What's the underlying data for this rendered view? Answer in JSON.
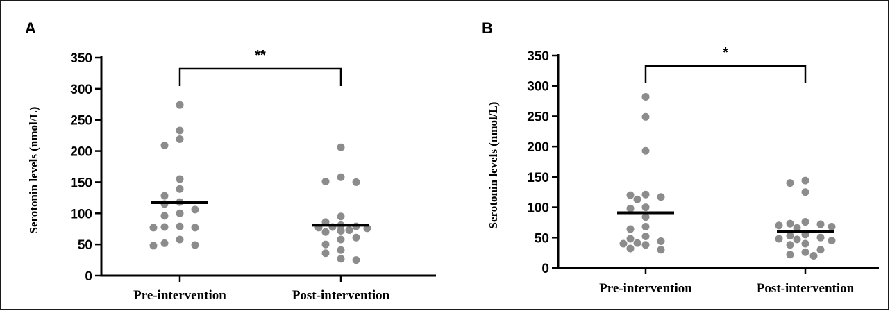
{
  "chart_data": [
    {
      "panel": "A",
      "type": "scatter",
      "ylabel": "Serotonin levels (nmol/L)",
      "ylim": [
        0,
        350
      ],
      "yticks": [
        "0",
        "50",
        "100",
        "150",
        "200",
        "250",
        "300",
        "350"
      ],
      "categories": [
        "Pre-intervention",
        "Post-intervention"
      ],
      "significance": "**",
      "point_color": "#8c8c8c",
      "series": [
        {
          "category": "Pre-intervention",
          "mean": 117,
          "points": [
            274,
            233,
            219,
            209,
            155,
            139,
            128,
            118,
            115,
            106,
            100,
            96,
            79,
            78,
            77,
            77,
            58,
            52,
            49,
            48
          ]
        },
        {
          "category": "Post-intervention",
          "mean": 81,
          "points": [
            206,
            158,
            151,
            150,
            95,
            86,
            81,
            79,
            78,
            77,
            76,
            73,
            72,
            72,
            70,
            61,
            58,
            50,
            41,
            36,
            27,
            25
          ]
        }
      ]
    },
    {
      "panel": "B",
      "type": "scatter",
      "ylabel": "Serotonin levels (nmol/L)",
      "ylim": [
        0,
        350
      ],
      "yticks": [
        "0",
        "50",
        "100",
        "150",
        "200",
        "250",
        "300",
        "350"
      ],
      "categories": [
        "Pre-intervention",
        "Post-intervention"
      ],
      "significance": "*",
      "point_color": "#8c8c8c",
      "series": [
        {
          "category": "Pre-intervention",
          "mean": 91,
          "points": [
            282,
            249,
            193,
            121,
            120,
            117,
            113,
            100,
            98,
            84,
            68,
            64,
            52,
            48,
            44,
            41,
            40,
            38,
            32,
            30
          ]
        },
        {
          "category": "Post-intervention",
          "mean": 60,
          "points": [
            144,
            140,
            125,
            76,
            73,
            72,
            70,
            68,
            66,
            55,
            53,
            50,
            48,
            47,
            45,
            40,
            38,
            30,
            26,
            22,
            20
          ]
        }
      ]
    }
  ]
}
